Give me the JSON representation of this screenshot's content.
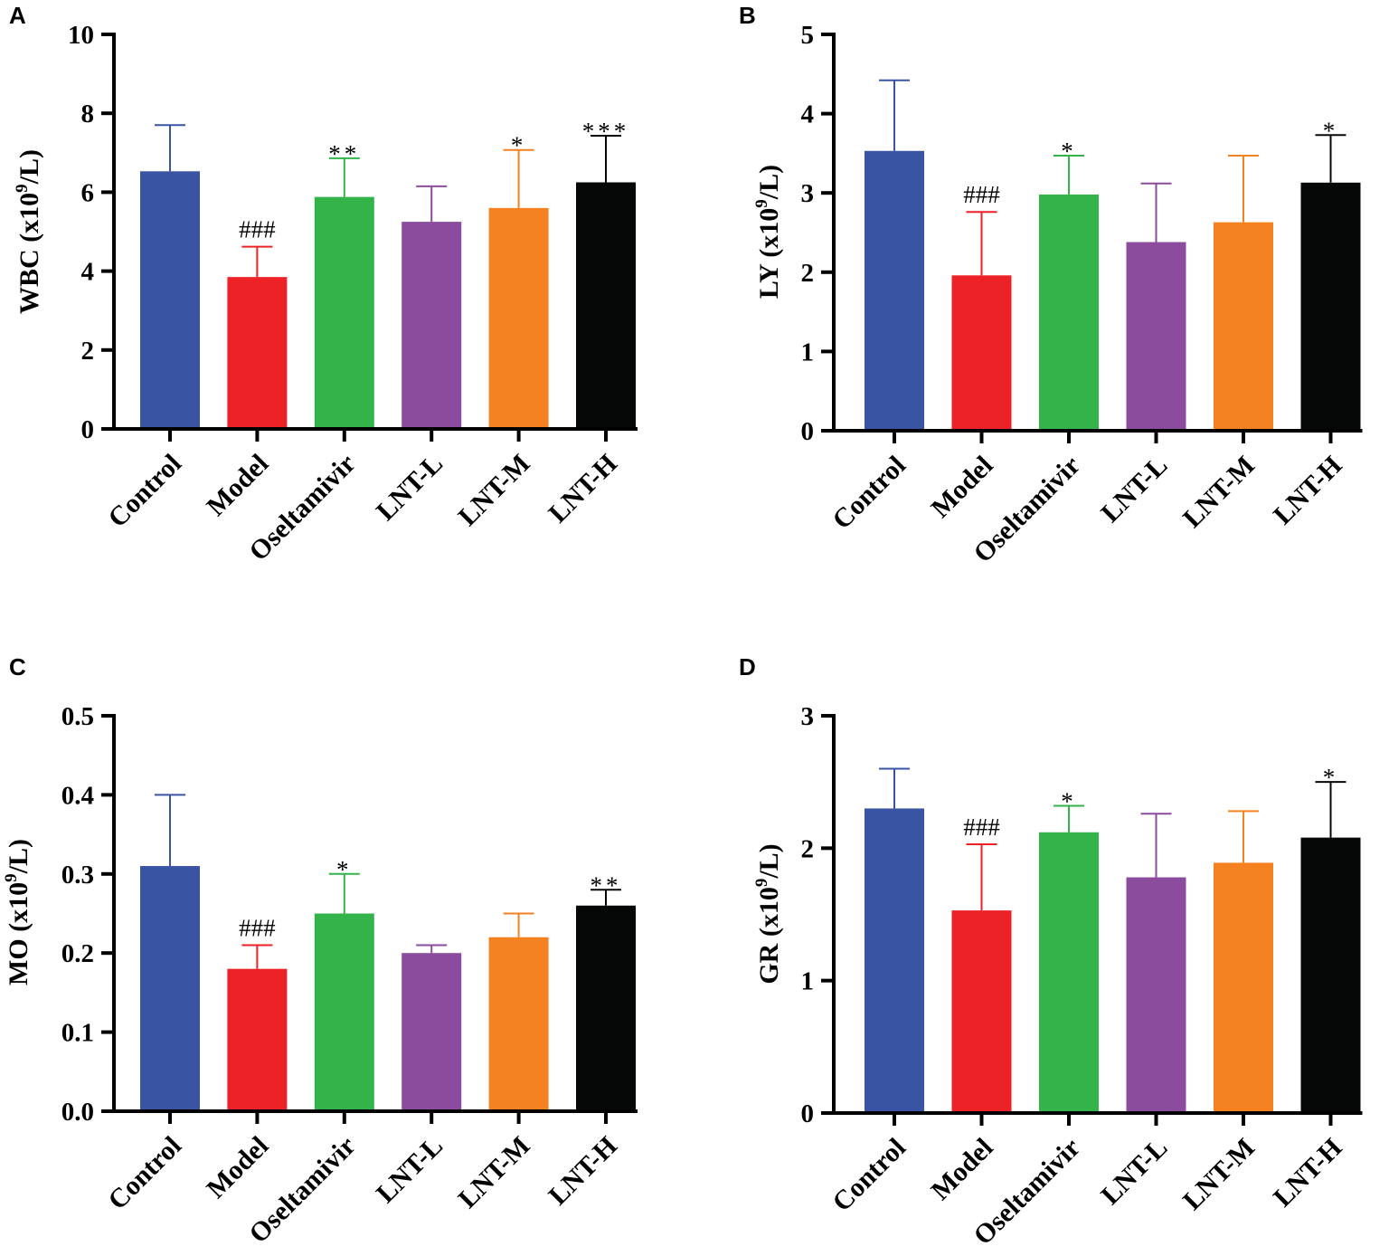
{
  "figure_title": "",
  "categories": [
    "Control",
    "Model",
    "Oseltamivir",
    "LNT-L",
    "LNT-M",
    "LNT-H"
  ],
  "colors": [
    "#3a54a4",
    "#ed2227",
    "#34b34a",
    "#8b4c9e",
    "#f58220",
    "#060808"
  ],
  "chart_data": [
    {
      "type": "bar",
      "panel": "A",
      "title": "",
      "xlabel": "",
      "ylabel": {
        "prefix": "WBC (x10",
        "sup": "9",
        "suffix": "/L)"
      },
      "ylim": [
        0,
        10
      ],
      "yticks": [
        0,
        2,
        4,
        6,
        8,
        10
      ],
      "ytick_labels": [
        "0",
        "2",
        "4",
        "6",
        "8",
        "10"
      ],
      "categories": [
        "Control",
        "Model",
        "Oseltamivir",
        "LNT-L",
        "LNT-M",
        "LNT-H"
      ],
      "values": [
        6.53,
        3.85,
        5.88,
        5.25,
        5.6,
        6.25
      ],
      "errors": [
        1.17,
        0.77,
        0.98,
        0.9,
        1.47,
        1.18
      ],
      "annotations": [
        "",
        "###",
        "**",
        "",
        "*",
        "***"
      ]
    },
    {
      "type": "bar",
      "panel": "B",
      "title": "",
      "xlabel": "",
      "ylabel": {
        "prefix": "LY (x10",
        "sup": "9",
        "suffix": "/L)"
      },
      "ylim": [
        0,
        5
      ],
      "yticks": [
        0,
        1,
        2,
        3,
        4,
        5
      ],
      "ytick_labels": [
        "0",
        "1",
        "2",
        "3",
        "4",
        "5"
      ],
      "categories": [
        "Control",
        "Model",
        "Oseltamivir",
        "LNT-L",
        "LNT-M",
        "LNT-H"
      ],
      "values": [
        3.53,
        1.96,
        2.98,
        2.38,
        2.63,
        3.13
      ],
      "errors": [
        0.89,
        0.8,
        0.49,
        0.74,
        0.84,
        0.6
      ],
      "annotations": [
        "",
        "###",
        "*",
        "",
        "",
        "*"
      ]
    },
    {
      "type": "bar",
      "panel": "C",
      "title": "",
      "xlabel": "",
      "ylabel": {
        "prefix": "MO (x10",
        "sup": "9",
        "suffix": "/L)"
      },
      "ylim": [
        0,
        0.5
      ],
      "yticks": [
        0,
        0.1,
        0.2,
        0.3,
        0.4,
        0.5
      ],
      "ytick_labels": [
        "0.0",
        "0.1",
        "0.2",
        "0.3",
        "0.4",
        "0.5"
      ],
      "categories": [
        "Control",
        "Model",
        "Oseltamivir",
        "LNT-L",
        "LNT-M",
        "LNT-H"
      ],
      "values": [
        0.31,
        0.18,
        0.25,
        0.2,
        0.22,
        0.26
      ],
      "errors": [
        0.09,
        0.03,
        0.05,
        0.01,
        0.03,
        0.02
      ],
      "annotations": [
        "",
        "###",
        "*",
        "",
        "",
        "**"
      ]
    },
    {
      "type": "bar",
      "panel": "D",
      "title": "",
      "xlabel": "",
      "ylabel": {
        "prefix": "GR (x10",
        "sup": "9",
        "suffix": "/L)"
      },
      "ylim": [
        0,
        3
      ],
      "yticks": [
        0,
        1,
        2,
        3
      ],
      "ytick_labels": [
        "0",
        "1",
        "2",
        "3"
      ],
      "categories": [
        "Control",
        "Model",
        "Oseltamivir",
        "LNT-L",
        "LNT-M",
        "LNT-H"
      ],
      "values": [
        2.3,
        1.53,
        2.12,
        1.78,
        1.89,
        2.08
      ],
      "errors": [
        0.3,
        0.5,
        0.2,
        0.48,
        0.39,
        0.42
      ],
      "annotations": [
        "",
        "###",
        "*",
        "",
        "",
        "*"
      ]
    }
  ]
}
